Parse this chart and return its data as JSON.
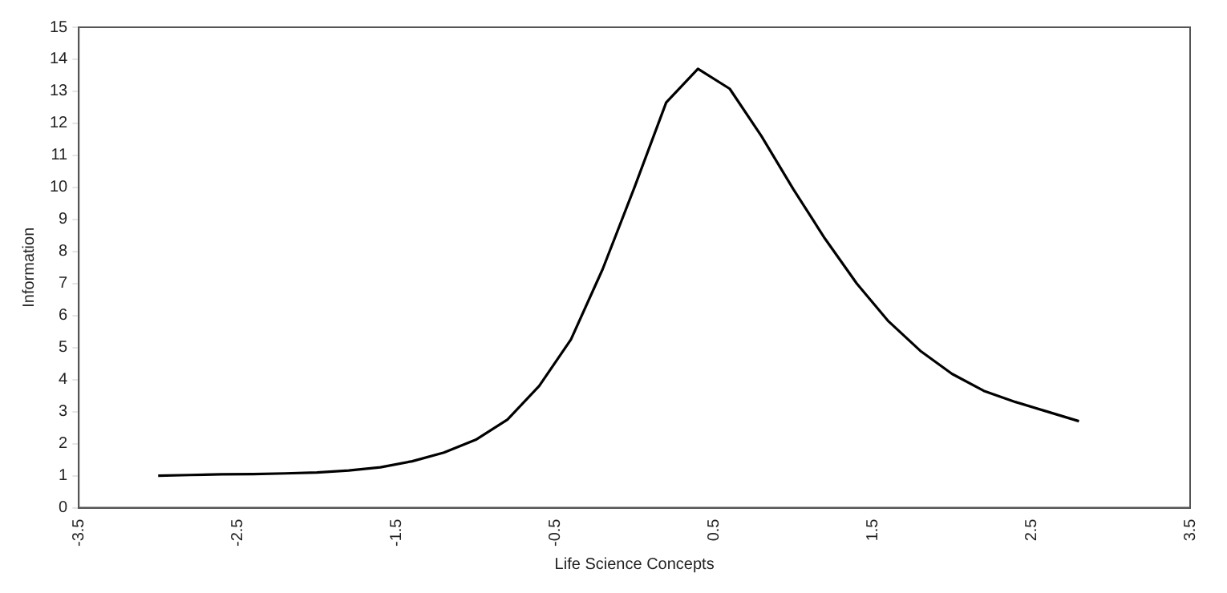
{
  "chart_data": {
    "type": "line",
    "xlabel": "Life Science Concepts",
    "ylabel": "Information",
    "x": [
      -3.0,
      -2.8,
      -2.6,
      -2.4,
      -2.2,
      -2.0,
      -1.8,
      -1.6,
      -1.4,
      -1.2,
      -1.0,
      -0.8,
      -0.6,
      -0.4,
      -0.2,
      0.0,
      0.2,
      0.4,
      0.6,
      0.8,
      1.0,
      1.2,
      1.4,
      1.6,
      1.8,
      2.0,
      2.2,
      2.4,
      2.6,
      2.8
    ],
    "series": [
      {
        "color": "#000000",
        "values": [
          1.0,
          1.02,
          1.04,
          1.05,
          1.07,
          1.1,
          1.16,
          1.26,
          1.45,
          1.72,
          2.12,
          2.75,
          3.8,
          5.25,
          7.45,
          10.0,
          12.65,
          13.7,
          13.08,
          11.6,
          9.95,
          8.4,
          7.0,
          5.82,
          4.9,
          4.18,
          3.65,
          3.3,
          3.0,
          2.7
        ]
      }
    ],
    "xlim": [
      -3.5,
      3.5
    ],
    "xticks": [
      -3.5,
      -2.5,
      -1.5,
      -0.5,
      0.5,
      1.5,
      2.5,
      3.5
    ],
    "ylim": [
      0,
      15
    ],
    "yticks": [
      0,
      1,
      2,
      3,
      4,
      5,
      6,
      7,
      8,
      9,
      10,
      11,
      12,
      13,
      14,
      15
    ],
    "grid": false,
    "legend": false,
    "marker": "none",
    "line_style": "solid"
  }
}
